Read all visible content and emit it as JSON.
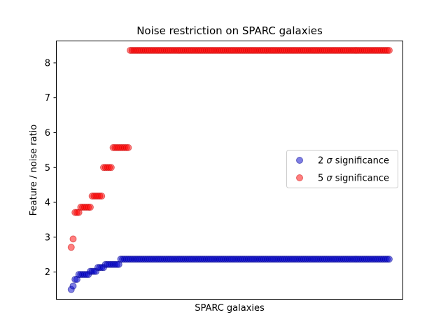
{
  "chart_data": {
    "type": "scatter",
    "title": "Noise restriction on SPARC galaxies",
    "xlabel": "SPARC galaxies",
    "ylabel": "Feature / noise ratio",
    "xlim": [
      -7,
      175
    ],
    "ylim": [
      1.23,
      8.64
    ],
    "yticks": [
      2,
      3,
      4,
      5,
      6,
      7,
      8
    ],
    "xticks_shown": false,
    "grid": false,
    "legend_position": "right",
    "series": [
      {
        "name": "2 σ significance",
        "legend_symbol": "σ",
        "legend_prefix": "2 ",
        "legend_suffix": " significance",
        "color": "#0000cc",
        "edge_color": "#00008b",
        "alpha": 0.5,
        "groups": [
          {
            "start": 1,
            "end": 1,
            "y": 1.5
          },
          {
            "start": 2,
            "end": 2,
            "y": 1.6
          },
          {
            "start": 3,
            "end": 4,
            "y": 1.79
          },
          {
            "start": 5,
            "end": 10,
            "y": 1.93
          },
          {
            "start": 11,
            "end": 14,
            "y": 2.02
          },
          {
            "start": 15,
            "end": 18,
            "y": 2.13
          },
          {
            "start": 19,
            "end": 26,
            "y": 2.22
          },
          {
            "start": 27,
            "end": 168,
            "y": 2.37
          }
        ]
      },
      {
        "name": "5 σ significance",
        "legend_symbol": "σ",
        "legend_prefix": "5 ",
        "legend_suffix": " significance",
        "color": "#ff0000",
        "edge_color": "#cc0000",
        "alpha": 0.5,
        "groups": [
          {
            "start": 1,
            "end": 1,
            "y": 2.71
          },
          {
            "start": 2,
            "end": 2,
            "y": 2.95
          },
          {
            "start": 3,
            "end": 5,
            "y": 3.71
          },
          {
            "start": 6,
            "end": 11,
            "y": 3.86
          },
          {
            "start": 12,
            "end": 17,
            "y": 4.18
          },
          {
            "start": 18,
            "end": 22,
            "y": 5.0
          },
          {
            "start": 23,
            "end": 31,
            "y": 5.57
          },
          {
            "start": 32,
            "end": 168,
            "y": 8.36
          }
        ]
      }
    ]
  }
}
